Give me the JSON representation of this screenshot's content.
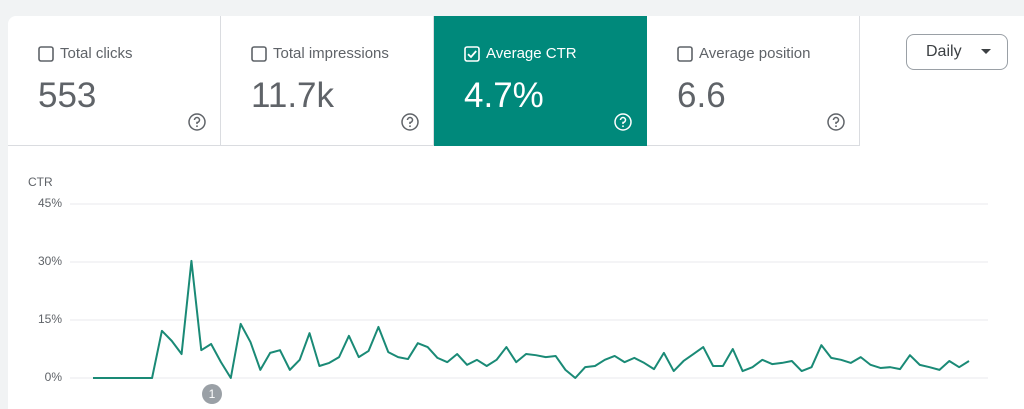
{
  "cards": [
    {
      "label": "Total clicks",
      "value": "553",
      "checked": false
    },
    {
      "label": "Total impressions",
      "value": "11.7k",
      "checked": false
    },
    {
      "label": "Average CTR",
      "value": "4.7%",
      "checked": true
    },
    {
      "label": "Average position",
      "value": "6.6",
      "checked": false
    }
  ],
  "dropdown": {
    "label": "Daily"
  },
  "annotations": [
    {
      "label": "1"
    }
  ],
  "chart_data": {
    "type": "line",
    "ylabel": "CTR",
    "color": "#1a8a76",
    "grid": true,
    "ylim": [
      0,
      45
    ],
    "yticks": [
      {
        "value": 0,
        "label": "0%"
      },
      {
        "value": 15,
        "label": "15%"
      },
      {
        "value": 30,
        "label": "30%"
      },
      {
        "value": 45,
        "label": "45%"
      }
    ],
    "values": [
      0,
      0,
      0,
      0,
      0,
      0,
      0,
      12.2,
      9.6,
      6.2,
      30.3,
      7.2,
      8.8,
      4.1,
      0,
      14,
      9.3,
      2.1,
      6.5,
      7.2,
      2.1,
      4.7,
      11.6,
      3.1,
      3.9,
      5.4,
      10.9,
      5.4,
      7,
      13.2,
      6.7,
      5.4,
      4.9,
      9,
      8,
      5.2,
      4.1,
      6.2,
      3.4,
      4.7,
      3.1,
      4.7,
      8,
      4.1,
      6.2,
      5.9,
      5.4,
      5.7,
      2.1,
      0,
      2.8,
      3.1,
      4.7,
      5.7,
      4.1,
      5.2,
      3.9,
      2.3,
      6.5,
      1.8,
      4.4,
      6.2,
      8,
      3.1,
      3.1,
      7.5,
      1.8,
      2.8,
      4.7,
      3.6,
      3.9,
      4.4,
      1.8,
      2.8,
      8.5,
      5.2,
      4.7,
      3.9,
      5.4,
      3.4,
      2.6,
      2.8,
      2.3,
      5.9,
      3.4,
      2.8,
      2.1,
      4.4,
      2.8,
      4.4
    ]
  }
}
